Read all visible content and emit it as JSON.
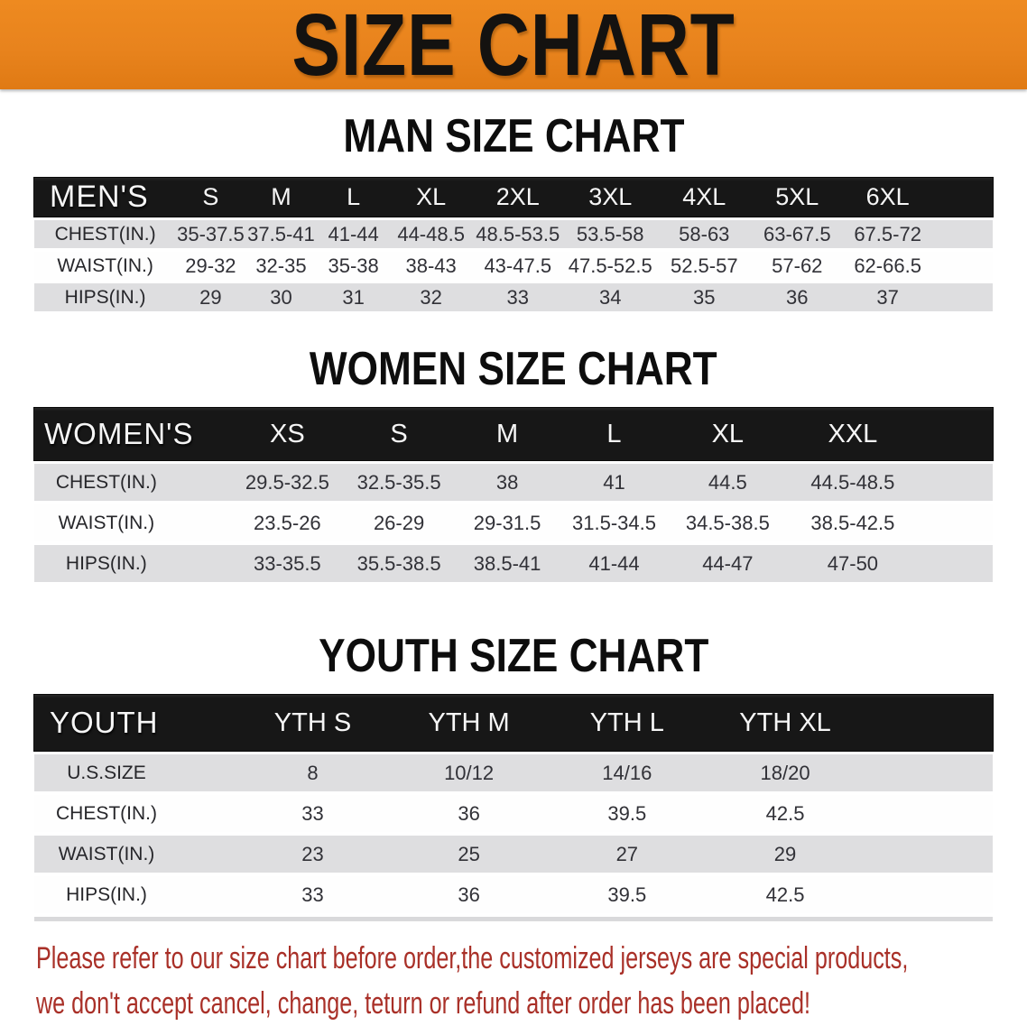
{
  "banner": {
    "title": "SIZE CHART",
    "bg_color": "#e8831d",
    "text_color": "#141210"
  },
  "sections": [
    {
      "heading": "MAN SIZE CHART",
      "table": {
        "header_label": "MEN'S",
        "columns": [
          "S",
          "M",
          "L",
          "XL",
          "2XL",
          "3XL",
          "4XL",
          "5XL",
          "6XL"
        ],
        "rows": [
          {
            "label": "CHEST(IN.)",
            "values": [
              "35-37.5",
              "37.5-41",
              "41-44",
              "44-48.5",
              "48.5-53.5",
              "53.5-58",
              "58-63",
              "63-67.5",
              "67.5-72"
            ]
          },
          {
            "label": "WAIST(IN.)",
            "values": [
              "29-32",
              "32-35",
              "35-38",
              "38-43",
              "43-47.5",
              "47.5-52.5",
              "52.5-57",
              "57-62",
              "62-66.5"
            ]
          },
          {
            "label": "HIPS(IN.)",
            "values": [
              "29",
              "30",
              "31",
              "32",
              "33",
              "34",
              "35",
              "36",
              "37"
            ]
          }
        ]
      }
    },
    {
      "heading": "WOMEN SIZE CHART",
      "table": {
        "header_label": "WOMEN'S",
        "columns": [
          "XS",
          "S",
          "M",
          "L",
          "XL",
          "XXL"
        ],
        "rows": [
          {
            "label": "CHEST(IN.)",
            "values": [
              "29.5-32.5",
              "32.5-35.5",
              "38",
              "41",
              "44.5",
              "44.5-48.5"
            ]
          },
          {
            "label": "WAIST(IN.)",
            "values": [
              "23.5-26",
              "26-29",
              "29-31.5",
              "31.5-34.5",
              "34.5-38.5",
              "38.5-42.5"
            ]
          },
          {
            "label": "HIPS(IN.)",
            "values": [
              "33-35.5",
              "35.5-38.5",
              "38.5-41",
              "41-44",
              "44-47",
              "47-50"
            ]
          }
        ]
      }
    },
    {
      "heading": "YOUTH SIZE CHART",
      "table": {
        "header_label": "YOUTH",
        "columns": [
          "YTH S",
          "YTH M",
          "YTH L",
          "YTH XL"
        ],
        "rows": [
          {
            "label": "U.S.SIZE",
            "values": [
              "8",
              "10/12",
              "14/16",
              "18/20"
            ]
          },
          {
            "label": "CHEST(IN.)",
            "values": [
              "33",
              "36",
              "39.5",
              "42.5"
            ]
          },
          {
            "label": "WAIST(IN.)",
            "values": [
              "23",
              "25",
              "27",
              "29"
            ]
          },
          {
            "label": "HIPS(IN.)",
            "values": [
              "33",
              "36",
              "39.5",
              "42.5"
            ]
          }
        ]
      }
    }
  ],
  "disclaimer": {
    "line1": "Please refer to our size chart before order,the customized jerseys are special products,",
    "line2": "we don't accept cancel, change, teturn or refund after order has been placed!",
    "color": "#a93028"
  }
}
